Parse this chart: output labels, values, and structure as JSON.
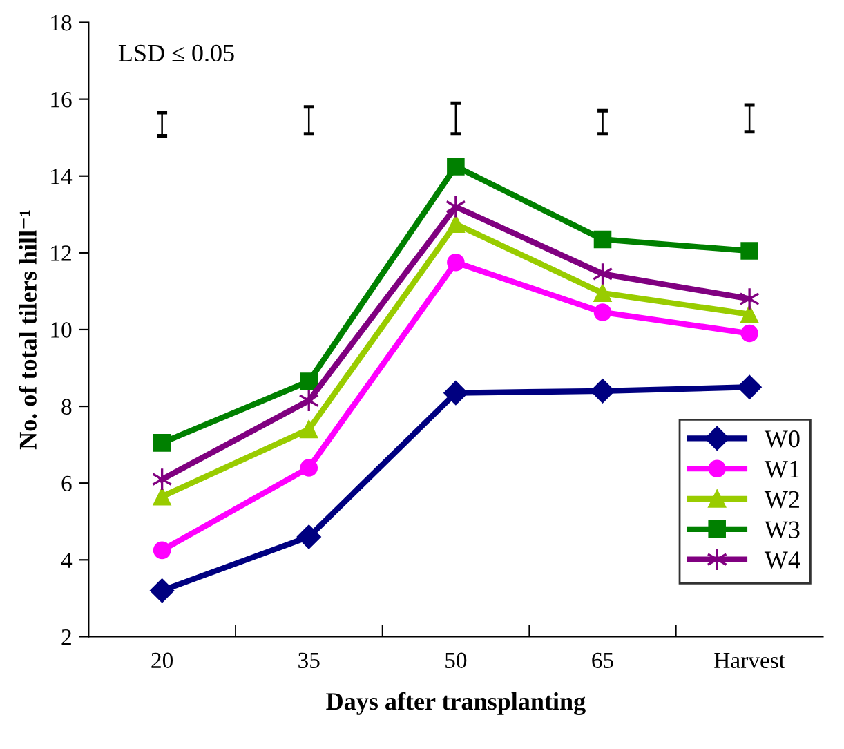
{
  "chart_data": {
    "type": "line",
    "xlabel": "Days after transplanting",
    "ylabel": "No. of total tilers hill⁻¹",
    "categories": [
      "20",
      "35",
      "50",
      "65",
      "Harvest"
    ],
    "ylim": [
      2,
      18
    ],
    "yticks": [
      2,
      4,
      6,
      8,
      10,
      12,
      14,
      16,
      18
    ],
    "grid": false,
    "legend": "right",
    "line_style": "solid",
    "annotations": [
      "LSD ≤ 0.05"
    ],
    "series": [
      {
        "name": "W0",
        "color": "#000080",
        "marker": "diamond",
        "values": [
          3.2,
          4.6,
          8.35,
          8.4,
          8.5
        ]
      },
      {
        "name": "W1",
        "color": "#ff00ff",
        "marker": "circle",
        "values": [
          4.25,
          6.4,
          11.75,
          10.45,
          9.9
        ]
      },
      {
        "name": "W2",
        "color": "#99cc00",
        "marker": "triangle",
        "values": [
          5.65,
          7.4,
          12.75,
          10.95,
          10.4
        ]
      },
      {
        "name": "W3",
        "color": "#008000",
        "marker": "square",
        "values": [
          7.05,
          8.65,
          14.25,
          12.35,
          12.05
        ]
      },
      {
        "name": "W4",
        "color": "#800080",
        "marker": "cross",
        "values": [
          6.1,
          8.15,
          13.2,
          11.45,
          10.8
        ]
      },
      {
        "type": "bar",
        "color": "#000000",
        "base": [
          15.05,
          15.1,
          15.1,
          15.1,
          15.15
        ],
        "values": [
          0.6,
          0.7,
          0.8,
          0.6,
          0.7
        ]
      }
    ]
  }
}
